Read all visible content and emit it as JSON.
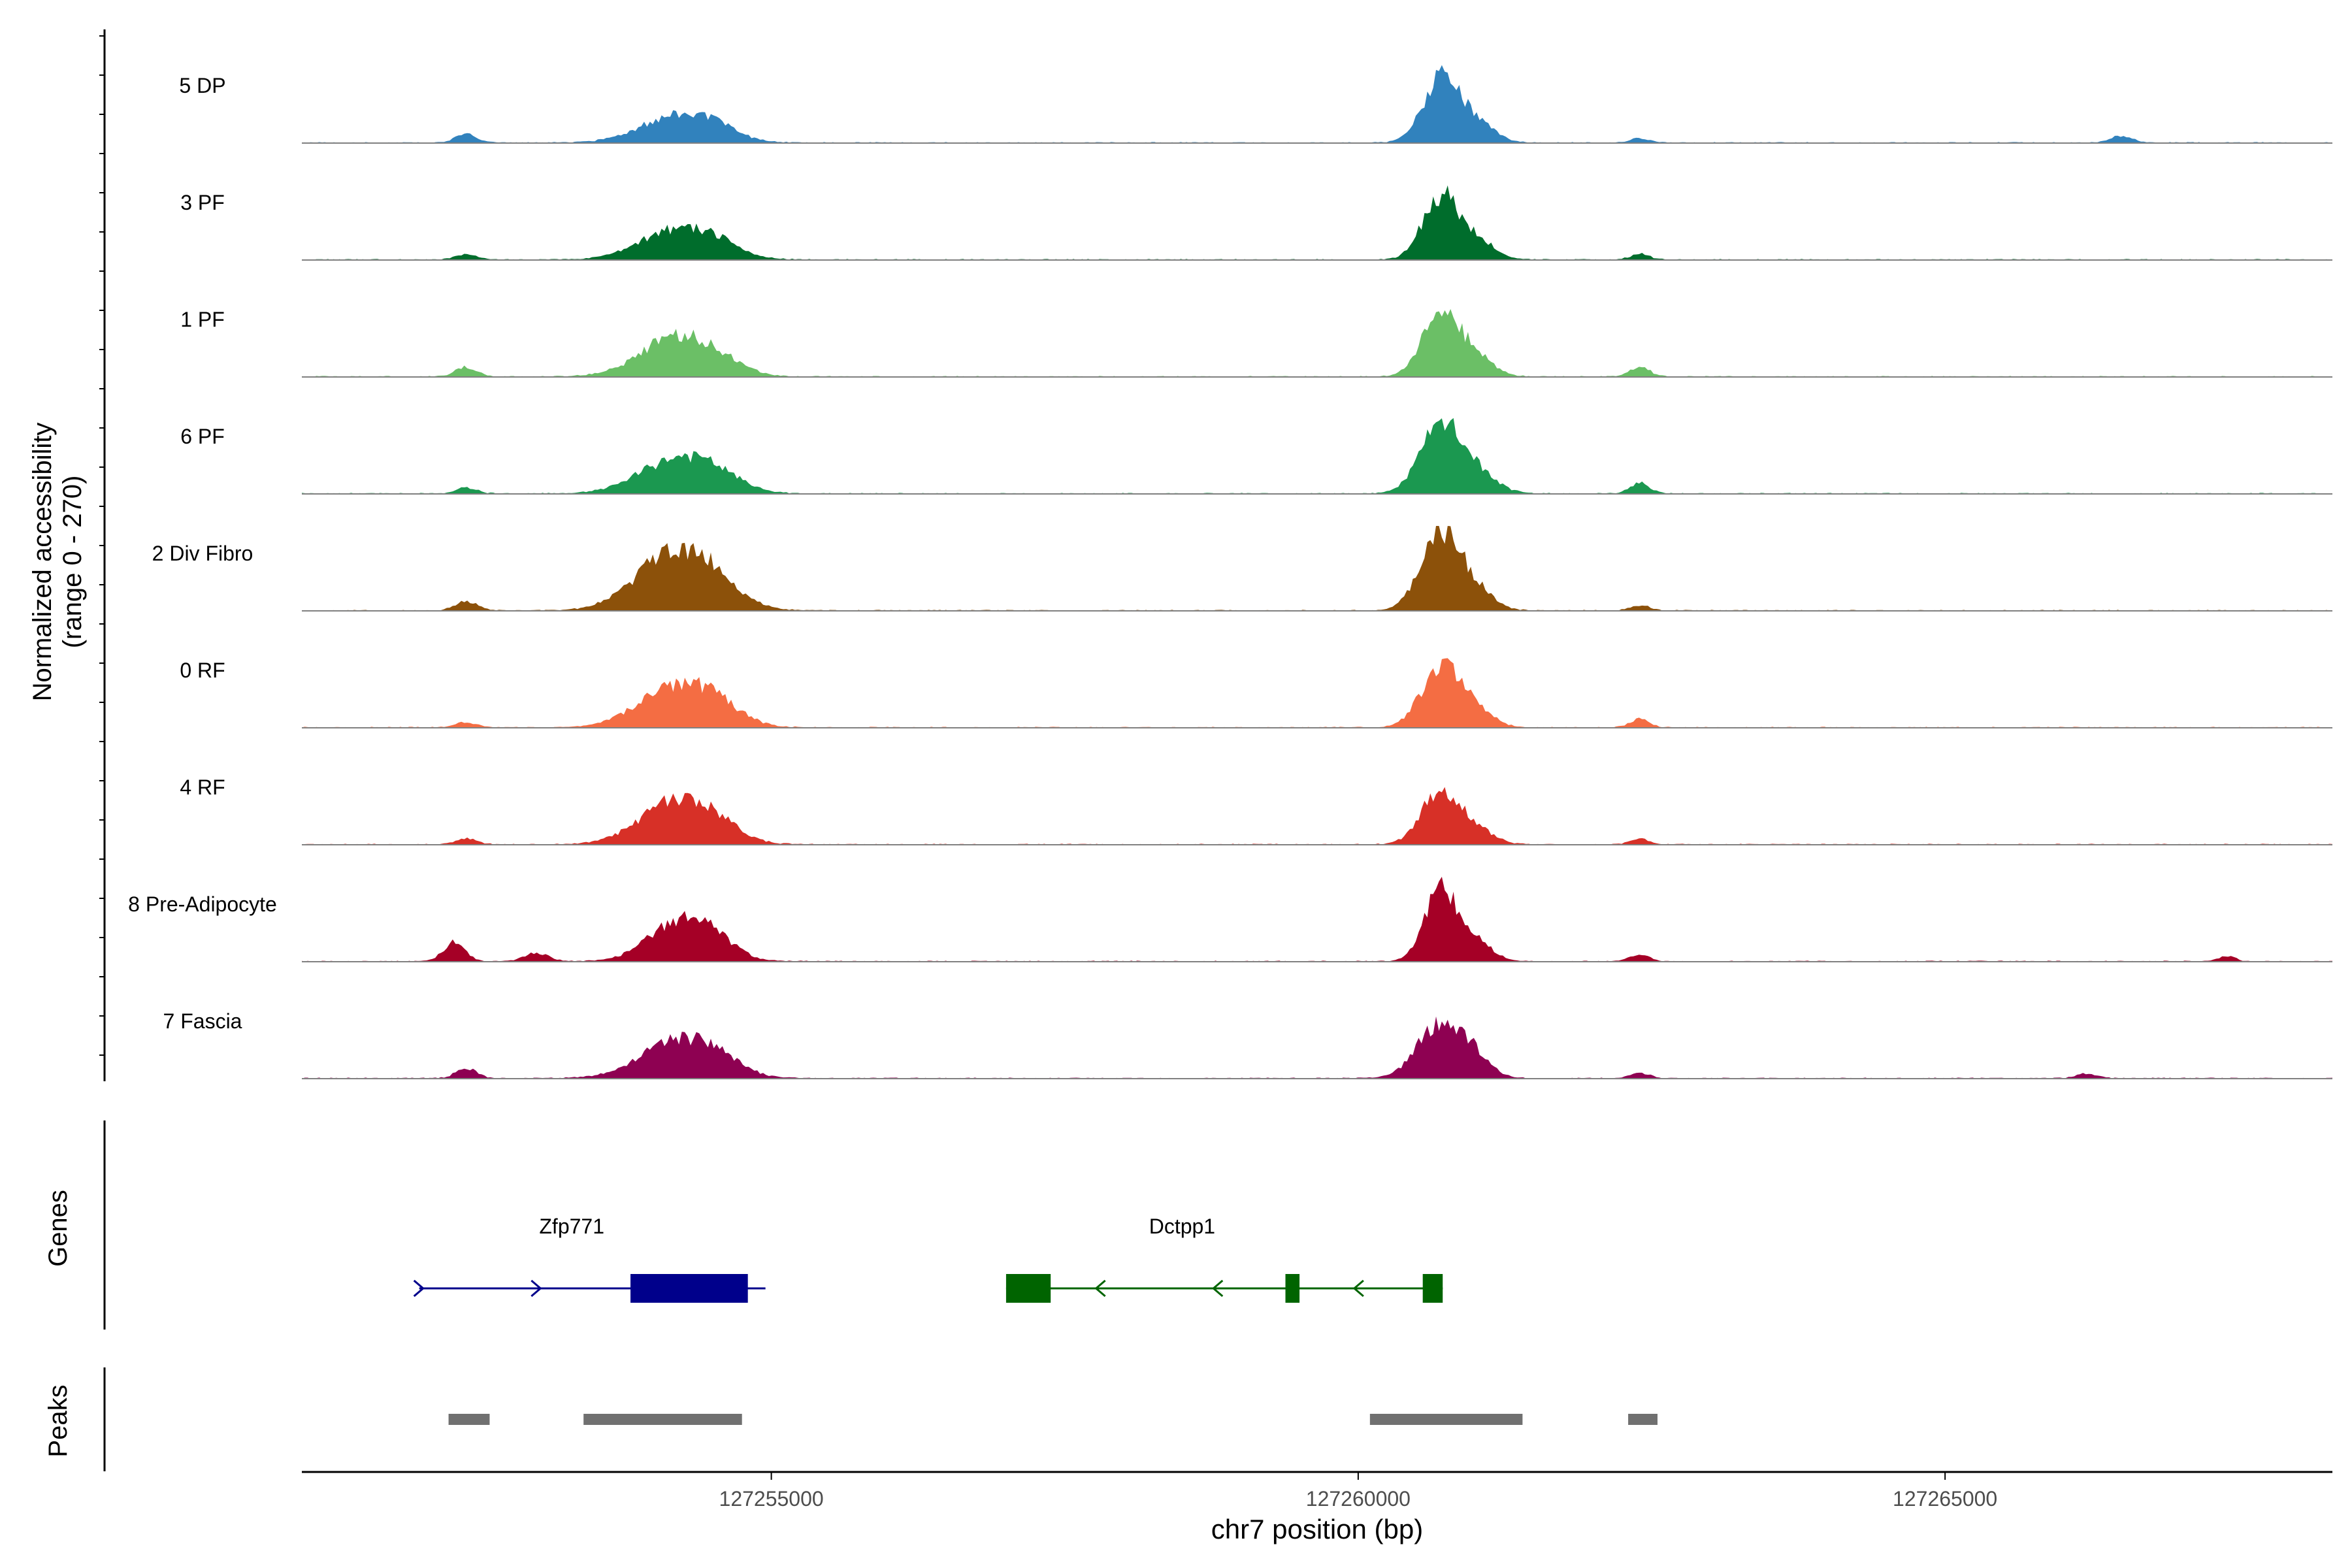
{
  "chart_data": {
    "type": "area",
    "title": "",
    "ylabel_line1": "Normalized accessibility",
    "ylabel_line2": "(range 0 - 270)",
    "y_range": [
      0,
      270
    ],
    "xlabel": "chr7 position (bp)",
    "xlim": [
      127251000,
      127268300
    ],
    "x_ticks": [
      127255000,
      127260000,
      127265000
    ],
    "x_tick_labels": [
      "127255000",
      "127260000",
      "127265000"
    ],
    "genes_label": "Genes",
    "peaks_label": "Peaks",
    "tracks": [
      {
        "name": "5 DP",
        "color": "#3182bd",
        "peaks": [
          [
            127252400,
            200,
            12
          ],
          [
            127254200,
            680,
            40
          ],
          [
            127254550,
            410,
            10
          ],
          [
            127260700,
            330,
            92
          ],
          [
            127261000,
            330,
            30
          ],
          [
            127262400,
            180,
            6
          ],
          [
            127266500,
            200,
            10
          ]
        ]
      },
      {
        "name": "3 PF",
        "color": "#006d2c",
        "peaks": [
          [
            127252400,
            200,
            8
          ],
          [
            127254200,
            680,
            44
          ],
          [
            127254570,
            420,
            12
          ],
          [
            127260700,
            330,
            90
          ],
          [
            127261000,
            330,
            28
          ],
          [
            127262400,
            180,
            8
          ]
        ]
      },
      {
        "name": "1 PF",
        "color": "#6bbf66",
        "peaks": [
          [
            127252400,
            200,
            14
          ],
          [
            127254200,
            680,
            58
          ],
          [
            127254580,
            430,
            10
          ],
          [
            127260700,
            330,
            98
          ],
          [
            127261000,
            330,
            28
          ],
          [
            127262400,
            180,
            14
          ]
        ]
      },
      {
        "name": "6 PF",
        "color": "#1b9850",
        "peaks": [
          [
            127252400,
            200,
            8
          ],
          [
            127254200,
            700,
            50
          ],
          [
            127254550,
            460,
            14
          ],
          [
            127260700,
            380,
            96
          ],
          [
            127261000,
            380,
            28
          ],
          [
            127262400,
            180,
            16
          ]
        ]
      },
      {
        "name": "2 Div Fibro",
        "color": "#8c510a",
        "peaks": [
          [
            127252400,
            200,
            14
          ],
          [
            127254200,
            720,
            88
          ],
          [
            127254550,
            450,
            12
          ],
          [
            127260700,
            360,
            114
          ],
          [
            127261000,
            330,
            28
          ],
          [
            127262400,
            180,
            8
          ]
        ]
      },
      {
        "name": "0 RF",
        "color": "#f46d43",
        "peaks": [
          [
            127252400,
            200,
            8
          ],
          [
            127254200,
            700,
            60
          ],
          [
            127254550,
            460,
            16
          ],
          [
            127260700,
            360,
            86
          ],
          [
            127261000,
            330,
            24
          ],
          [
            127262400,
            180,
            12
          ]
        ]
      },
      {
        "name": "4 RF",
        "color": "#d73027",
        "peaks": [
          [
            127252400,
            200,
            8
          ],
          [
            127254200,
            680,
            64
          ],
          [
            127254550,
            430,
            12
          ],
          [
            127260700,
            360,
            76
          ],
          [
            127261000,
            330,
            20
          ],
          [
            127262400,
            180,
            8
          ]
        ]
      },
      {
        "name": "8 Pre-Adipocyte",
        "color": "#a50026",
        "peaks": [
          [
            127252300,
            200,
            28
          ],
          [
            127253000,
            220,
            12
          ],
          [
            127254250,
            600,
            62
          ],
          [
            127254550,
            350,
            10
          ],
          [
            127260700,
            300,
            104
          ],
          [
            127261000,
            300,
            30
          ],
          [
            127262400,
            180,
            10
          ],
          [
            127267400,
            150,
            8
          ]
        ]
      },
      {
        "name": "7 Fascia",
        "color": "#8e0152",
        "peaks": [
          [
            127252400,
            200,
            14
          ],
          [
            127254200,
            700,
            54
          ],
          [
            127254550,
            450,
            14
          ],
          [
            127260700,
            420,
            80
          ],
          [
            127261000,
            300,
            24
          ],
          [
            127262400,
            180,
            8
          ],
          [
            127266200,
            200,
            6
          ]
        ]
      }
    ],
    "genes": [
      {
        "name": "Zfp771",
        "strand": "+",
        "color": "#00008b",
        "start": 127252000,
        "end": 127254950,
        "exons": [
          [
            127253800,
            127254800
          ]
        ],
        "arrows": [
          127252000,
          127253000
        ]
      },
      {
        "name": "Dctpp1",
        "strand": "-",
        "color": "#006400",
        "start": 127257000,
        "end": 127260720,
        "exons": [
          [
            127257000,
            127257380
          ],
          [
            127259380,
            127259500
          ],
          [
            127260550,
            127260720
          ]
        ],
        "arrows": [
          127257800,
          127258800,
          127260000
        ]
      }
    ],
    "peak_regions": [
      [
        127252250,
        127252600
      ],
      [
        127253400,
        127254750
      ],
      [
        127260100,
        127261400
      ],
      [
        127262300,
        127262550
      ]
    ]
  }
}
